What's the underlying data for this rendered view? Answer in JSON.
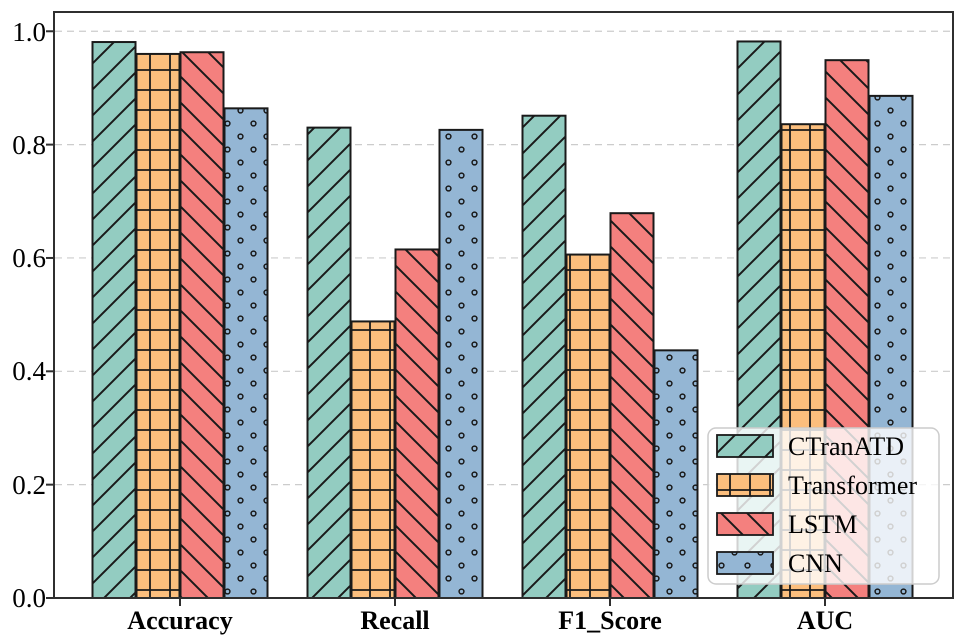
{
  "chart_data": {
    "type": "bar",
    "title": "",
    "xlabel": "",
    "ylabel": "",
    "categories": [
      "Accuracy",
      "Recall",
      "F1_Score",
      "AUC"
    ],
    "series": [
      {
        "name": "CTranATD",
        "color": "#93CCC1",
        "hatch": "/",
        "values": [
          0.981,
          0.83,
          0.851,
          0.982
        ]
      },
      {
        "name": "Transformer",
        "color": "#FBBE7D",
        "hatch": "+",
        "values": [
          0.96,
          0.488,
          0.606,
          0.836
        ]
      },
      {
        "name": "LSTM",
        "color": "#F4807E",
        "hatch": "\\",
        "values": [
          0.963,
          0.615,
          0.679,
          0.949
        ]
      },
      {
        "name": "CNN",
        "color": "#94B6D4",
        "hatch": "o",
        "values": [
          0.864,
          0.826,
          0.437,
          0.886
        ]
      }
    ],
    "yticks": [
      "0.0",
      "0.2",
      "0.4",
      "0.6",
      "0.8",
      "1.0"
    ],
    "ytick_values": [
      0.0,
      0.2,
      0.4,
      0.6,
      0.8,
      1.0
    ],
    "ylim": [
      0.0,
      1.034
    ],
    "grid": true,
    "grid_style": "dashed",
    "legend_position": "lower right",
    "bar_edge_color": "#1a1a1a",
    "grid_color": "#cccccc",
    "spine_color": "#2f2f2f"
  }
}
